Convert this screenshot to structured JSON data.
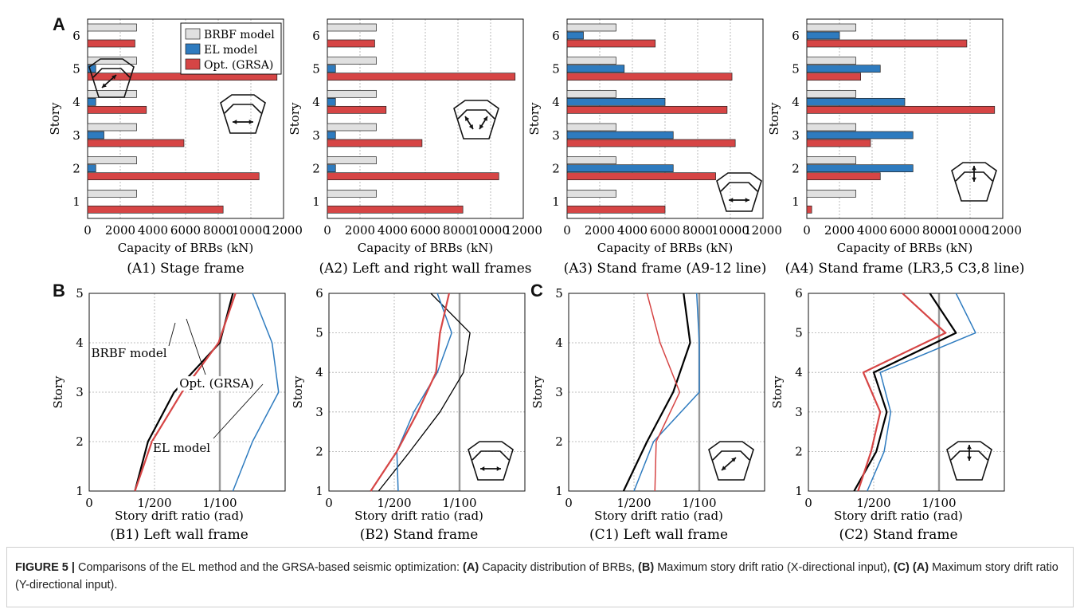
{
  "figure": {
    "panel_letters": [
      "A",
      "B",
      "C"
    ],
    "caption": {
      "label": "FIGURE 5 |",
      "text1": " Comparisons of the EL method and the GRSA-based seismic optimization: ",
      "b1": "(A)",
      "text2": " Capacity distribution of BRBs, ",
      "b2": "(B)",
      "text3": " Maximum story drift ratio (X-directional input), ",
      "b3": "(C)",
      "b4": "(A)",
      "text4": " Maximum story drift ratio (Y-directional input)."
    }
  },
  "colors": {
    "brbf": "#e0e0e0",
    "el": "#2e7bbf",
    "opt": "#d64545",
    "brbf_line": "#000000",
    "limit_line": "#999999"
  },
  "chart_data": [
    {
      "type": "bar",
      "orientation": "horizontal",
      "subtitle": "(A1) Stage frame",
      "xlabel": "Capacity of BRBs  (kN)",
      "ylabel": "Story",
      "xlim": [
        0,
        12000
      ],
      "xticks": [
        "0",
        "2000",
        "4000",
        "6000",
        "8000",
        "10000",
        "12000"
      ],
      "categories": [
        "1",
        "2",
        "3",
        "4",
        "5",
        "6"
      ],
      "legend": [
        "BRBF model",
        "EL model",
        "Opt. (GRSA)"
      ],
      "icon": "horizontal-arrow",
      "series": [
        {
          "name": "BRBF model",
          "values": [
            3000,
            3000,
            3000,
            3000,
            3000,
            3000
          ]
        },
        {
          "name": "EL model",
          "values": [
            0,
            500,
            1000,
            500,
            500,
            0
          ]
        },
        {
          "name": "Opt. (GRSA)",
          "values": [
            8300,
            10500,
            5900,
            3600,
            11600,
            2900
          ]
        }
      ]
    },
    {
      "type": "bar",
      "orientation": "horizontal",
      "subtitle": "(A2) Left and right wall frames",
      "xlabel": "Capacity of BRBs  (kN)",
      "ylabel": "Story",
      "xlim": [
        0,
        12000
      ],
      "xticks": [
        "0",
        "2000",
        "4000",
        "6000",
        "8000",
        "10000",
        "12000"
      ],
      "categories": [
        "1",
        "2",
        "3",
        "4",
        "5",
        "6"
      ],
      "icon": "diagonal-arrows",
      "series": [
        {
          "name": "BRBF model",
          "values": [
            3000,
            3000,
            3000,
            3000,
            3000,
            3000
          ]
        },
        {
          "name": "EL model",
          "values": [
            0,
            500,
            500,
            500,
            500,
            0
          ]
        },
        {
          "name": "Opt. (GRSA)",
          "values": [
            8300,
            10500,
            5800,
            3600,
            11500,
            2900
          ]
        }
      ]
    },
    {
      "type": "bar",
      "orientation": "horizontal",
      "subtitle": "(A3) Stand frame (A9-12 line)",
      "xlabel": "Capacity of BRBs  (kN)",
      "ylabel": "Story",
      "xlim": [
        0,
        12000
      ],
      "xticks": [
        "0",
        "2000",
        "4000",
        "6000",
        "8000",
        "10000",
        "12000"
      ],
      "categories": [
        "1",
        "2",
        "3",
        "4",
        "5",
        "6"
      ],
      "icon": "horizontal-arrow",
      "series": [
        {
          "name": "BRBF model",
          "values": [
            3000,
            3000,
            3000,
            3000,
            3000,
            3000
          ]
        },
        {
          "name": "EL model",
          "values": [
            0,
            6500,
            6500,
            6000,
            3500,
            1000
          ]
        },
        {
          "name": "Opt. (GRSA)",
          "values": [
            6000,
            9100,
            10300,
            9800,
            10100,
            5400
          ]
        }
      ]
    },
    {
      "type": "bar",
      "orientation": "horizontal",
      "subtitle": "(A4) Stand frame (LR3,5 C3,8 line)",
      "xlabel": "Capacity of BRBs  (kN)",
      "ylabel": "Story",
      "xlim": [
        0,
        12000
      ],
      "xticks": [
        "0",
        "2000",
        "4000",
        "6000",
        "8000",
        "10000",
        "12000"
      ],
      "categories": [
        "1",
        "2",
        "3",
        "4",
        "5",
        "6"
      ],
      "icon": "vertical-arrow",
      "series": [
        {
          "name": "BRBF model",
          "values": [
            3000,
            3000,
            3000,
            3000,
            3000,
            3000
          ]
        },
        {
          "name": "EL model",
          "values": [
            0,
            6500,
            6500,
            6000,
            4500,
            2000
          ]
        },
        {
          "name": "Opt. (GRSA)",
          "values": [
            300,
            4500,
            3900,
            11500,
            3300,
            9800
          ]
        }
      ]
    },
    {
      "type": "line",
      "subtitle": "(B1) Left wall frame",
      "xlabel": "Story drift ratio (rad)",
      "ylabel": "Story",
      "xlim": [
        0,
        0.015
      ],
      "ylim": [
        1,
        5
      ],
      "xticks": [
        "0",
        "1/200",
        "1/100"
      ],
      "yticks": [
        "1",
        "2",
        "3",
        "4",
        "5"
      ],
      "limit_line_x": 0.01,
      "annotations": [
        "BRBF model",
        "Opt. (GRSA)",
        "EL model"
      ],
      "icon": "diagonal-arrow",
      "series": [
        {
          "name": "BRBF model",
          "color": "#000000",
          "width": 2.2,
          "x": [
            0.0035,
            0.0045,
            0.0065,
            0.01,
            0.011
          ],
          "y": [
            1,
            2,
            3,
            4,
            5
          ]
        },
        {
          "name": "EL model",
          "color": "#2e7bbf",
          "width": 1.5,
          "x": [
            0.011,
            0.0125,
            0.0145,
            0.014,
            0.0125
          ],
          "y": [
            1,
            2,
            3,
            4,
            5
          ]
        },
        {
          "name": "Opt. (GRSA)",
          "color": "#d64545",
          "width": 2.2,
          "x": [
            0.0035,
            0.0048,
            0.0071,
            0.0099,
            0.0112
          ],
          "y": [
            1,
            2,
            3,
            4,
            5
          ]
        }
      ]
    },
    {
      "type": "line",
      "subtitle": "(B2) Stand frame",
      "xlabel": "Story drift ratio (rad)",
      "ylabel": "Story",
      "xlim": [
        0,
        0.015
      ],
      "ylim": [
        1,
        6
      ],
      "xticks": [
        "0",
        "1/200",
        "1/100"
      ],
      "yticks": [
        "1",
        "2",
        "3",
        "4",
        "5",
        "6"
      ],
      "limit_line_x": 0.01,
      "icon": "horizontal-arrow",
      "series": [
        {
          "name": "BRBF model",
          "color": "#000000",
          "width": 1.3,
          "x": [
            0.0038,
            0.0062,
            0.0085,
            0.0103,
            0.0108,
            0.0078
          ],
          "y": [
            1,
            2,
            3,
            4,
            5,
            6
          ]
        },
        {
          "name": "EL model",
          "color": "#2e7bbf",
          "width": 1.5,
          "x": [
            0.0053,
            0.0052,
            0.0065,
            0.0083,
            0.0094,
            0.0083
          ],
          "y": [
            1,
            2,
            3,
            4,
            5,
            6
          ]
        },
        {
          "name": "Opt. (GRSA)",
          "color": "#d64545",
          "width": 2.2,
          "x": [
            0.0032,
            0.0052,
            0.0068,
            0.0082,
            0.0085,
            0.0092
          ],
          "y": [
            1,
            2,
            3,
            4,
            5,
            6
          ]
        }
      ]
    },
    {
      "type": "line",
      "subtitle": "(C1) Left wall frame",
      "xlabel": "Story drift ratio (rad)",
      "ylabel": "Story",
      "xlim": [
        0,
        0.015
      ],
      "ylim": [
        1,
        5
      ],
      "xticks": [
        "0",
        "1/200",
        "1/100"
      ],
      "yticks": [
        "1",
        "2",
        "3",
        "4",
        "5"
      ],
      "limit_line_x": 0.01,
      "icon": "diagonal-arrow",
      "series": [
        {
          "name": "BRBF model",
          "color": "#000000",
          "width": 2.2,
          "x": [
            0.0042,
            0.006,
            0.008,
            0.0093,
            0.0088
          ],
          "y": [
            1,
            2,
            3,
            4,
            5
          ]
        },
        {
          "name": "EL model",
          "color": "#2e7bbf",
          "width": 1.5,
          "x": [
            0.005,
            0.0065,
            0.01,
            0.01,
            0.0098
          ],
          "y": [
            1,
            2,
            3,
            4,
            5
          ]
        },
        {
          "name": "Opt. (GRSA)",
          "color": "#d64545",
          "width": 1.5,
          "x": [
            0.0066,
            0.0067,
            0.0085,
            0.007,
            0.006
          ],
          "y": [
            1,
            2,
            3,
            4,
            5
          ]
        }
      ]
    },
    {
      "type": "line",
      "subtitle": "(C2) Stand frame",
      "xlabel": "Story drift ratio (rad)",
      "ylabel": "Story",
      "xlim": [
        0,
        0.015
      ],
      "ylim": [
        1,
        6
      ],
      "xticks": [
        "0",
        "1/200",
        "1/100"
      ],
      "yticks": [
        "1",
        "2",
        "3",
        "4",
        "5",
        "6"
      ],
      "limit_line_x": 0.01,
      "icon": "vertical-arrow",
      "series": [
        {
          "name": "BRBF model",
          "color": "#000000",
          "width": 2.2,
          "x": [
            0.0035,
            0.0052,
            0.006,
            0.005,
            0.0113,
            0.0093
          ],
          "y": [
            1,
            2,
            3,
            4,
            5,
            6
          ]
        },
        {
          "name": "EL model",
          "color": "#2e7bbf",
          "width": 1.5,
          "x": [
            0.0045,
            0.0058,
            0.0063,
            0.0055,
            0.0128,
            0.0113
          ],
          "y": [
            1,
            2,
            3,
            4,
            5,
            6
          ]
        },
        {
          "name": "Opt. (GRSA)",
          "color": "#d64545",
          "width": 2.2,
          "x": [
            0.0038,
            0.0048,
            0.0055,
            0.0042,
            0.0105,
            0.0072
          ],
          "y": [
            1,
            2,
            3,
            4,
            5,
            6
          ]
        }
      ]
    }
  ]
}
